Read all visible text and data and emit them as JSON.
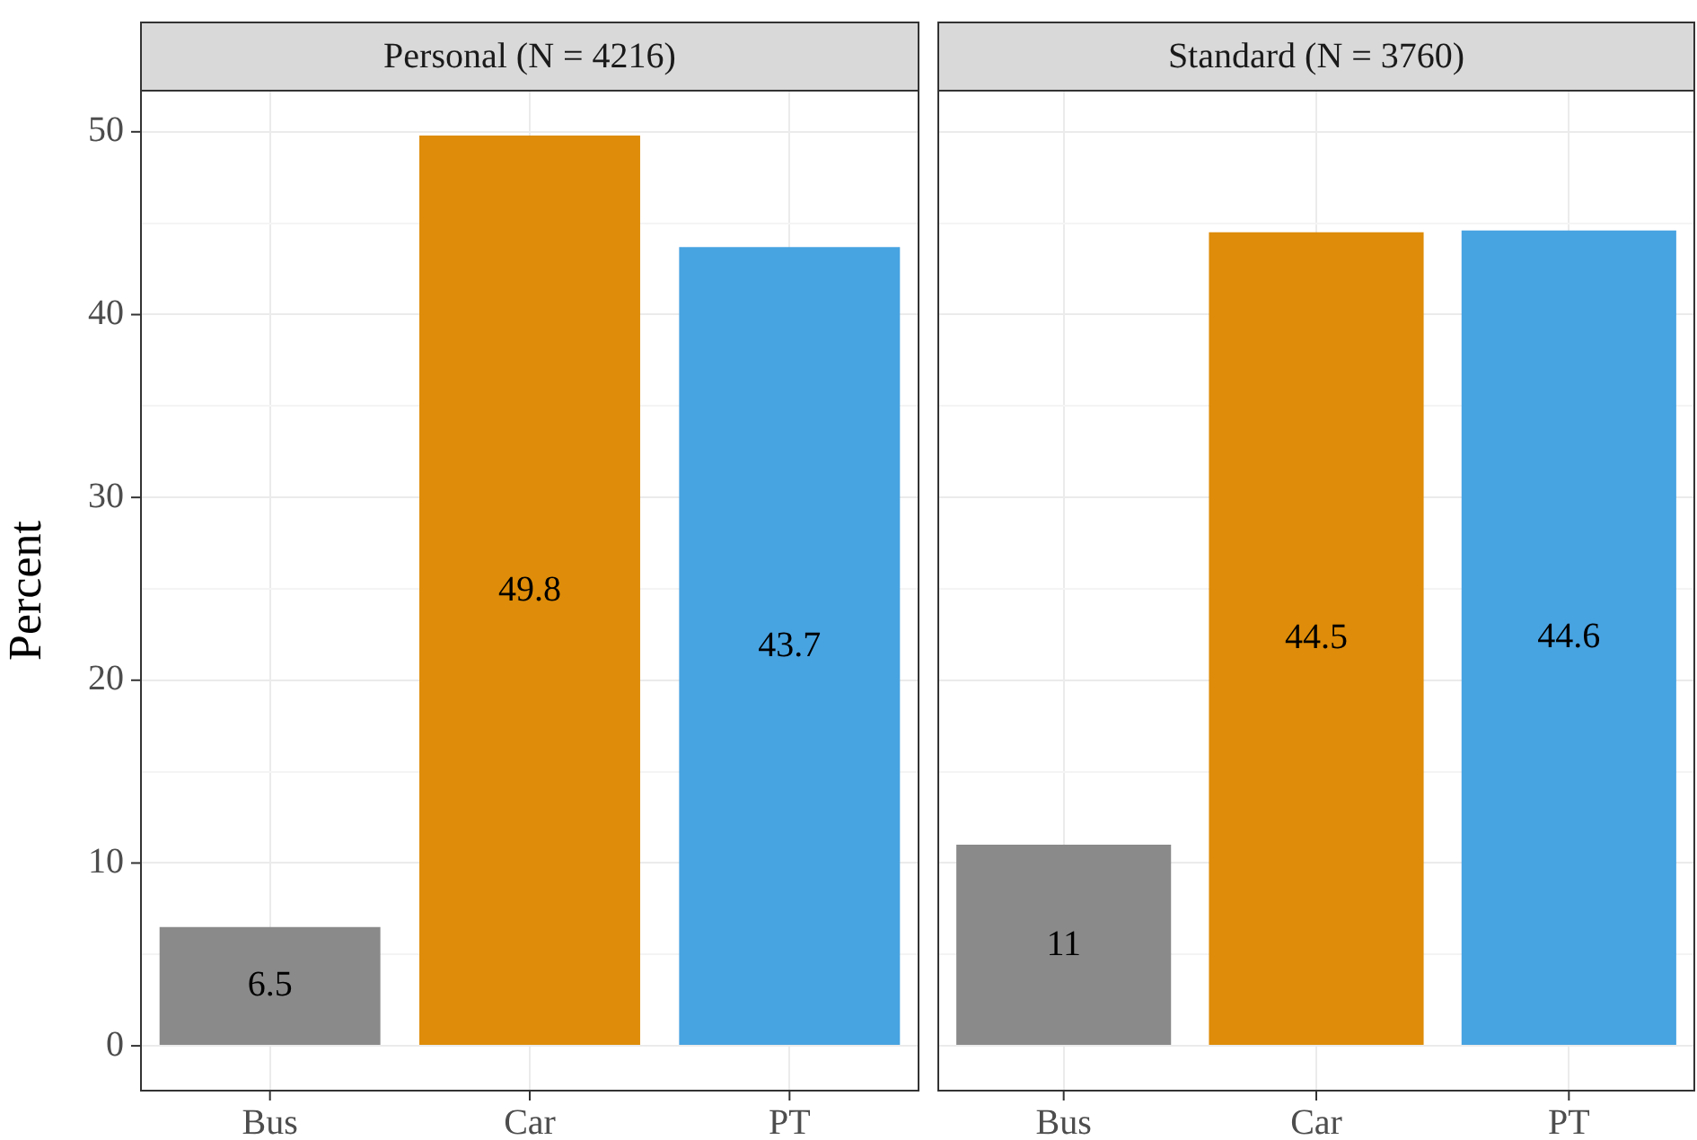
{
  "chart_data": [
    {
      "type": "bar",
      "title": "Personal (N = 4216)",
      "ylabel": "Percent",
      "categories": [
        "Bus",
        "Car",
        "PT"
      ],
      "values": [
        6.5,
        49.8,
        43.7
      ],
      "colors": [
        "#8a8a8a",
        "#de8c09",
        "#48a3e1"
      ],
      "ylim": [
        -2.5,
        52.3
      ],
      "yticks": [
        0,
        {
          "value": 5,
          "label": null
        },
        10,
        {
          "value": 15,
          "label": null
        },
        20,
        {
          "value": 25,
          "label": null
        },
        30,
        {
          "value": 35,
          "label": null
        },
        40,
        {
          "value": 45,
          "label": null
        },
        50
      ],
      "grid": true,
      "data_labels": true
    },
    {
      "type": "bar",
      "title": "Standard (N = 3760)",
      "categories": [
        "Bus",
        "Car",
        "PT"
      ],
      "values": [
        11,
        44.5,
        44.6
      ],
      "colors": [
        "#8a8a8a",
        "#de8c09",
        "#48a3e1"
      ],
      "ylim": [
        -2.5,
        52.3
      ],
      "yticks": [
        0,
        {
          "value": 5,
          "label": null
        },
        10,
        {
          "value": 15,
          "label": null
        },
        20,
        {
          "value": 25,
          "label": null
        },
        30,
        {
          "value": 35,
          "label": null
        },
        40,
        {
          "value": 45,
          "label": null
        },
        50
      ],
      "grid": true,
      "data_labels": true,
      "tick_labels": "x"
    }
  ]
}
